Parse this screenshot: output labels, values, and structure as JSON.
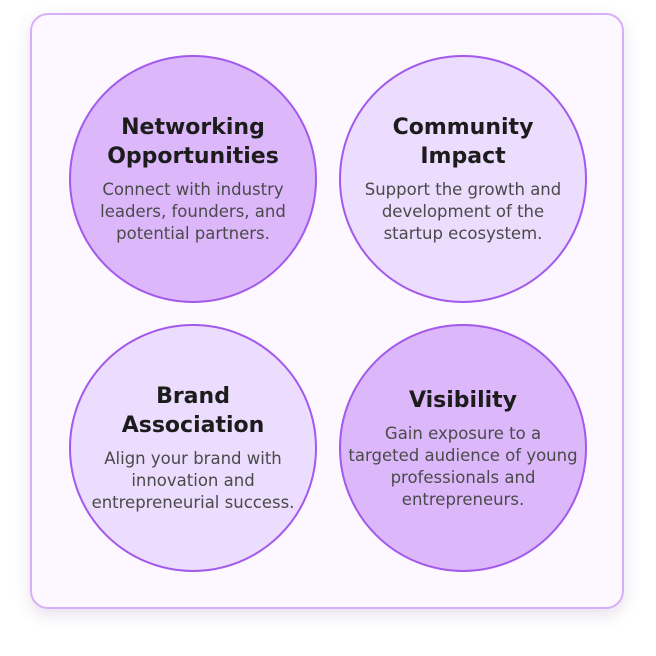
{
  "benefits": [
    {
      "title": "Networking Opportunities",
      "description": "Connect with industry leaders, founders, and potential partners."
    },
    {
      "title": "Community Impact",
      "description": "Support the growth and development of the startup ecosystem."
    },
    {
      "title": "Brand Association",
      "description": "Align your brand with innovation and entrepreneurial success."
    },
    {
      "title": "Visibility",
      "description": "Gain exposure to a targeted audience of young professionals and entrepreneurs."
    }
  ],
  "colors": {
    "circle_dark": "#dcb8fb",
    "circle_light": "#ecdcfd",
    "circle_border": "#a259ec",
    "card_border": "#d9aef9",
    "card_background": "#fdf7ff"
  }
}
